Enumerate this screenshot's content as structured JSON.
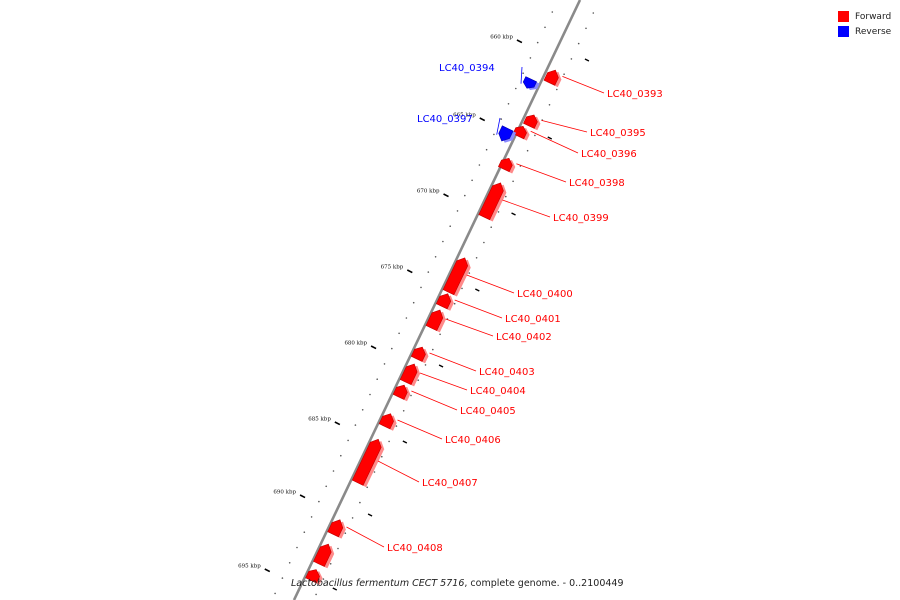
{
  "legend": {
    "forward_label": "Forward",
    "reverse_label": "Reverse",
    "forward_color": "#ff0000",
    "reverse_color": "#0000ff"
  },
  "caption": {
    "organism": "Lactobacillus fermentum CECT 5716",
    "rest": ", complete genome. - 0..2100449"
  },
  "ruler": {
    "ticks": [
      {
        "kbp": 660,
        "label": "660 kbp"
      },
      {
        "kbp": 665,
        "label": "665 kbp"
      },
      {
        "kbp": 670,
        "label": "670 kbp"
      },
      {
        "kbp": 675,
        "label": "675 kbp"
      },
      {
        "kbp": 680,
        "label": "680 kbp"
      },
      {
        "kbp": 685,
        "label": "685 kbp"
      },
      {
        "kbp": 690,
        "label": "690 kbp"
      },
      {
        "kbp": 695,
        "label": "695 kbp"
      }
    ]
  },
  "genes": [
    {
      "name": "LC40_0393",
      "strand": "forward"
    },
    {
      "name": "LC40_0394",
      "strand": "reverse"
    },
    {
      "name": "LC40_0395",
      "strand": "forward"
    },
    {
      "name": "LC40_0396",
      "strand": "forward"
    },
    {
      "name": "LC40_0397",
      "strand": "reverse"
    },
    {
      "name": "LC40_0398",
      "strand": "forward"
    },
    {
      "name": "LC40_0399",
      "strand": "forward"
    },
    {
      "name": "LC40_0400",
      "strand": "forward"
    },
    {
      "name": "LC40_0401",
      "strand": "forward"
    },
    {
      "name": "LC40_0402",
      "strand": "forward"
    },
    {
      "name": "LC40_0403",
      "strand": "forward"
    },
    {
      "name": "LC40_0404",
      "strand": "forward"
    },
    {
      "name": "LC40_0405",
      "strand": "forward"
    },
    {
      "name": "LC40_0406",
      "strand": "forward"
    },
    {
      "name": "LC40_0407",
      "strand": "forward"
    },
    {
      "name": "LC40_0408",
      "strand": "forward"
    }
  ]
}
